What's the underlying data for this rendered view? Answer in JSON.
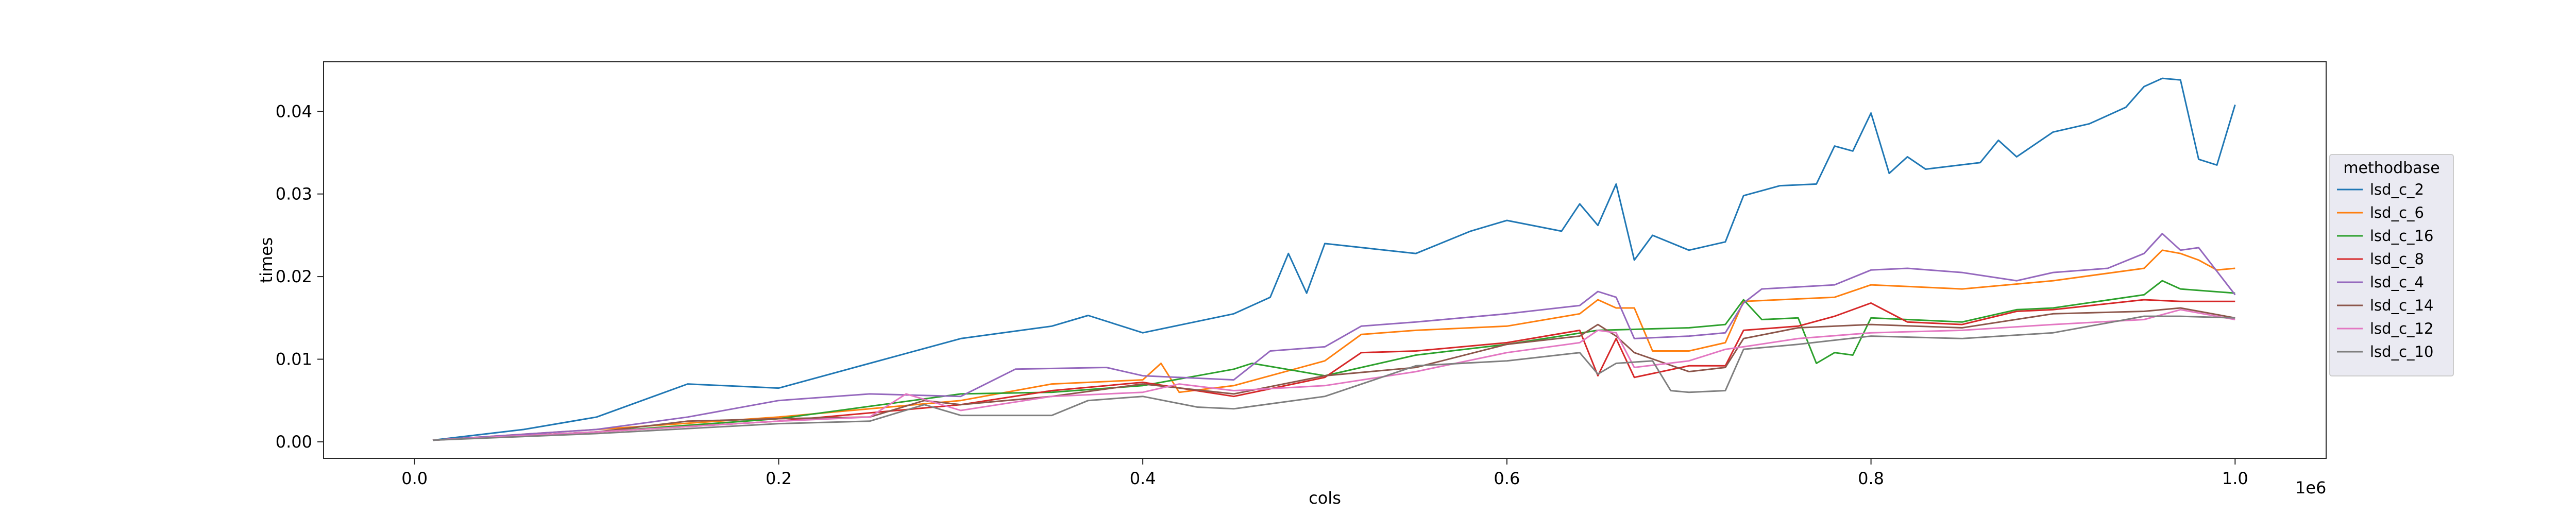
{
  "chart_data": {
    "type": "line",
    "xlabel": "cols",
    "ylabel": "times",
    "x_offset_text": "1e6",
    "xlim": [
      -0.05,
      1.05
    ],
    "ylim": [
      -0.002,
      0.046
    ],
    "xticks": [
      0.0,
      0.2,
      0.4,
      0.6,
      0.8,
      1.0
    ],
    "xtick_labels": [
      "0.0",
      "0.2",
      "0.4",
      "0.6",
      "0.8",
      "1.0"
    ],
    "yticks": [
      0.0,
      0.01,
      0.02,
      0.03,
      0.04
    ],
    "ytick_labels": [
      "0.00",
      "0.01",
      "0.02",
      "0.03",
      "0.04"
    ],
    "grid": false,
    "legend": {
      "title": "methodbase",
      "placement": "right, outside the axes"
    },
    "series": [
      {
        "name": "lsd_c_2",
        "color": "#1f77b4",
        "points": [
          [
            0.01,
            0.0002
          ],
          [
            0.06,
            0.0015
          ],
          [
            0.1,
            0.003
          ],
          [
            0.15,
            0.007
          ],
          [
            0.2,
            0.0065
          ],
          [
            0.25,
            0.0095
          ],
          [
            0.3,
            0.0125
          ],
          [
            0.35,
            0.014
          ],
          [
            0.37,
            0.0153
          ],
          [
            0.4,
            0.0132
          ],
          [
            0.45,
            0.0155
          ],
          [
            0.47,
            0.0175
          ],
          [
            0.48,
            0.0228
          ],
          [
            0.49,
            0.018
          ],
          [
            0.5,
            0.024
          ],
          [
            0.55,
            0.0228
          ],
          [
            0.58,
            0.0255
          ],
          [
            0.6,
            0.0268
          ],
          [
            0.63,
            0.0255
          ],
          [
            0.64,
            0.0288
          ],
          [
            0.65,
            0.0262
          ],
          [
            0.66,
            0.0312
          ],
          [
            0.67,
            0.022
          ],
          [
            0.68,
            0.025
          ],
          [
            0.7,
            0.0232
          ],
          [
            0.72,
            0.0242
          ],
          [
            0.73,
            0.0298
          ],
          [
            0.75,
            0.031
          ],
          [
            0.77,
            0.0312
          ],
          [
            0.78,
            0.0358
          ],
          [
            0.79,
            0.0352
          ],
          [
            0.8,
            0.0398
          ],
          [
            0.81,
            0.0325
          ],
          [
            0.82,
            0.0345
          ],
          [
            0.83,
            0.033
          ],
          [
            0.86,
            0.0338
          ],
          [
            0.87,
            0.0365
          ],
          [
            0.88,
            0.0345
          ],
          [
            0.9,
            0.0375
          ],
          [
            0.92,
            0.0385
          ],
          [
            0.94,
            0.0405
          ],
          [
            0.95,
            0.043
          ],
          [
            0.96,
            0.044
          ],
          [
            0.97,
            0.0438
          ],
          [
            0.98,
            0.0342
          ],
          [
            0.99,
            0.0335
          ],
          [
            1.0,
            0.0408
          ]
        ]
      },
      {
        "name": "lsd_c_6",
        "color": "#ff7f0e",
        "points": [
          [
            0.01,
            0.0002
          ],
          [
            0.1,
            0.0015
          ],
          [
            0.2,
            0.003
          ],
          [
            0.3,
            0.005
          ],
          [
            0.35,
            0.007
          ],
          [
            0.4,
            0.0075
          ],
          [
            0.41,
            0.0095
          ],
          [
            0.42,
            0.006
          ],
          [
            0.45,
            0.0068
          ],
          [
            0.5,
            0.0098
          ],
          [
            0.52,
            0.013
          ],
          [
            0.55,
            0.0135
          ],
          [
            0.6,
            0.014
          ],
          [
            0.64,
            0.0155
          ],
          [
            0.65,
            0.0172
          ],
          [
            0.66,
            0.0162
          ],
          [
            0.67,
            0.0162
          ],
          [
            0.68,
            0.011
          ],
          [
            0.7,
            0.011
          ],
          [
            0.72,
            0.012
          ],
          [
            0.73,
            0.017
          ],
          [
            0.78,
            0.0175
          ],
          [
            0.8,
            0.019
          ],
          [
            0.85,
            0.0185
          ],
          [
            0.9,
            0.0195
          ],
          [
            0.95,
            0.021
          ],
          [
            0.96,
            0.0232
          ],
          [
            0.97,
            0.0228
          ],
          [
            0.98,
            0.022
          ],
          [
            0.99,
            0.0208
          ],
          [
            1.0,
            0.021
          ]
        ]
      },
      {
        "name": "lsd_c_16",
        "color": "#2ca02c",
        "points": [
          [
            0.01,
            0.0002
          ],
          [
            0.1,
            0.0012
          ],
          [
            0.2,
            0.0028
          ],
          [
            0.3,
            0.0058
          ],
          [
            0.35,
            0.006
          ],
          [
            0.4,
            0.0068
          ],
          [
            0.45,
            0.0088
          ],
          [
            0.46,
            0.0095
          ],
          [
            0.5,
            0.008
          ],
          [
            0.55,
            0.0105
          ],
          [
            0.6,
            0.0118
          ],
          [
            0.65,
            0.0135
          ],
          [
            0.7,
            0.0138
          ],
          [
            0.72,
            0.0142
          ],
          [
            0.73,
            0.0172
          ],
          [
            0.74,
            0.0148
          ],
          [
            0.76,
            0.015
          ],
          [
            0.77,
            0.0095
          ],
          [
            0.78,
            0.0108
          ],
          [
            0.79,
            0.0105
          ],
          [
            0.8,
            0.015
          ],
          [
            0.85,
            0.0145
          ],
          [
            0.88,
            0.016
          ],
          [
            0.9,
            0.0162
          ],
          [
            0.95,
            0.0178
          ],
          [
            0.96,
            0.0195
          ],
          [
            0.97,
            0.0185
          ],
          [
            1.0,
            0.018
          ]
        ]
      },
      {
        "name": "lsd_c_8",
        "color": "#d62728",
        "points": [
          [
            0.01,
            0.0002
          ],
          [
            0.1,
            0.0012
          ],
          [
            0.2,
            0.0025
          ],
          [
            0.3,
            0.0045
          ],
          [
            0.35,
            0.0062
          ],
          [
            0.4,
            0.0072
          ],
          [
            0.45,
            0.0055
          ],
          [
            0.5,
            0.0078
          ],
          [
            0.52,
            0.0108
          ],
          [
            0.55,
            0.011
          ],
          [
            0.6,
            0.012
          ],
          [
            0.64,
            0.0135
          ],
          [
            0.65,
            0.008
          ],
          [
            0.66,
            0.0125
          ],
          [
            0.67,
            0.0078
          ],
          [
            0.7,
            0.0092
          ],
          [
            0.72,
            0.0092
          ],
          [
            0.73,
            0.0135
          ],
          [
            0.76,
            0.014
          ],
          [
            0.78,
            0.0152
          ],
          [
            0.8,
            0.0168
          ],
          [
            0.82,
            0.0145
          ],
          [
            0.85,
            0.0142
          ],
          [
            0.88,
            0.0158
          ],
          [
            0.9,
            0.016
          ],
          [
            0.95,
            0.0172
          ],
          [
            0.97,
            0.017
          ],
          [
            1.0,
            0.017
          ]
        ]
      },
      {
        "name": "lsd_c_4",
        "color": "#9467bd",
        "points": [
          [
            0.01,
            0.0002
          ],
          [
            0.1,
            0.0015
          ],
          [
            0.15,
            0.003
          ],
          [
            0.2,
            0.005
          ],
          [
            0.25,
            0.0058
          ],
          [
            0.3,
            0.0055
          ],
          [
            0.33,
            0.0088
          ],
          [
            0.38,
            0.009
          ],
          [
            0.4,
            0.008
          ],
          [
            0.45,
            0.0075
          ],
          [
            0.47,
            0.011
          ],
          [
            0.5,
            0.0115
          ],
          [
            0.52,
            0.014
          ],
          [
            0.55,
            0.0145
          ],
          [
            0.6,
            0.0155
          ],
          [
            0.64,
            0.0165
          ],
          [
            0.65,
            0.0182
          ],
          [
            0.66,
            0.0175
          ],
          [
            0.67,
            0.0125
          ],
          [
            0.7,
            0.0128
          ],
          [
            0.72,
            0.0132
          ],
          [
            0.73,
            0.0168
          ],
          [
            0.74,
            0.0185
          ],
          [
            0.78,
            0.019
          ],
          [
            0.8,
            0.0208
          ],
          [
            0.82,
            0.021
          ],
          [
            0.85,
            0.0205
          ],
          [
            0.88,
            0.0195
          ],
          [
            0.9,
            0.0205
          ],
          [
            0.93,
            0.021
          ],
          [
            0.95,
            0.0228
          ],
          [
            0.96,
            0.0252
          ],
          [
            0.97,
            0.0232
          ],
          [
            0.98,
            0.0235
          ],
          [
            1.0,
            0.0178
          ]
        ]
      },
      {
        "name": "lsd_c_14",
        "color": "#8c564b",
        "points": [
          [
            0.01,
            0.0002
          ],
          [
            0.1,
            0.0012
          ],
          [
            0.15,
            0.0025
          ],
          [
            0.2,
            0.0028
          ],
          [
            0.25,
            0.003
          ],
          [
            0.28,
            0.005
          ],
          [
            0.3,
            0.0045
          ],
          [
            0.35,
            0.0055
          ],
          [
            0.4,
            0.007
          ],
          [
            0.45,
            0.0058
          ],
          [
            0.5,
            0.008
          ],
          [
            0.55,
            0.009
          ],
          [
            0.6,
            0.0118
          ],
          [
            0.64,
            0.0128
          ],
          [
            0.65,
            0.0142
          ],
          [
            0.66,
            0.0128
          ],
          [
            0.67,
            0.0108
          ],
          [
            0.7,
            0.0085
          ],
          [
            0.72,
            0.009
          ],
          [
            0.73,
            0.0125
          ],
          [
            0.76,
            0.0138
          ],
          [
            0.8,
            0.0142
          ],
          [
            0.85,
            0.0138
          ],
          [
            0.9,
            0.0155
          ],
          [
            0.95,
            0.0158
          ],
          [
            0.97,
            0.0162
          ],
          [
            1.0,
            0.015
          ]
        ]
      },
      {
        "name": "lsd_c_12",
        "color": "#e377c2",
        "points": [
          [
            0.01,
            0.0002
          ],
          [
            0.1,
            0.0012
          ],
          [
            0.2,
            0.0025
          ],
          [
            0.25,
            0.003
          ],
          [
            0.27,
            0.0058
          ],
          [
            0.3,
            0.0038
          ],
          [
            0.35,
            0.0055
          ],
          [
            0.4,
            0.006
          ],
          [
            0.42,
            0.007
          ],
          [
            0.45,
            0.0062
          ],
          [
            0.5,
            0.0068
          ],
          [
            0.55,
            0.0085
          ],
          [
            0.6,
            0.0108
          ],
          [
            0.64,
            0.012
          ],
          [
            0.65,
            0.0135
          ],
          [
            0.66,
            0.0132
          ],
          [
            0.67,
            0.009
          ],
          [
            0.7,
            0.0098
          ],
          [
            0.72,
            0.0112
          ],
          [
            0.73,
            0.0115
          ],
          [
            0.76,
            0.0125
          ],
          [
            0.8,
            0.0132
          ],
          [
            0.85,
            0.0135
          ],
          [
            0.9,
            0.0142
          ],
          [
            0.95,
            0.0148
          ],
          [
            0.97,
            0.016
          ],
          [
            1.0,
            0.0148
          ]
        ]
      },
      {
        "name": "lsd_c_10",
        "color": "#7f7f7f",
        "points": [
          [
            0.01,
            0.0002
          ],
          [
            0.1,
            0.001
          ],
          [
            0.2,
            0.0022
          ],
          [
            0.25,
            0.0025
          ],
          [
            0.28,
            0.0045
          ],
          [
            0.3,
            0.0032
          ],
          [
            0.35,
            0.0032
          ],
          [
            0.37,
            0.005
          ],
          [
            0.4,
            0.0055
          ],
          [
            0.43,
            0.0042
          ],
          [
            0.45,
            0.004
          ],
          [
            0.5,
            0.0055
          ],
          [
            0.55,
            0.0092
          ],
          [
            0.6,
            0.0098
          ],
          [
            0.64,
            0.0108
          ],
          [
            0.65,
            0.0082
          ],
          [
            0.66,
            0.0095
          ],
          [
            0.68,
            0.0098
          ],
          [
            0.69,
            0.0062
          ],
          [
            0.7,
            0.006
          ],
          [
            0.72,
            0.0062
          ],
          [
            0.73,
            0.0112
          ],
          [
            0.76,
            0.0118
          ],
          [
            0.8,
            0.0128
          ],
          [
            0.85,
            0.0125
          ],
          [
            0.9,
            0.0132
          ],
          [
            0.95,
            0.0152
          ],
          [
            0.97,
            0.0152
          ],
          [
            1.0,
            0.015
          ]
        ]
      }
    ]
  }
}
